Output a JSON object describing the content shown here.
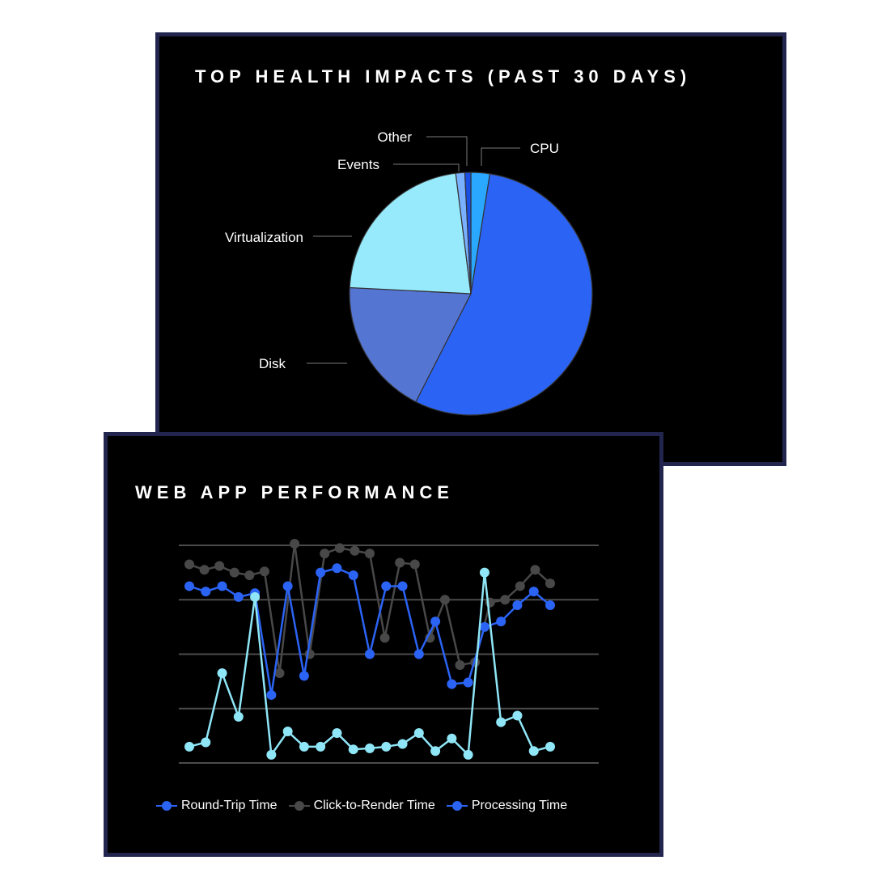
{
  "chart_data": [
    {
      "type": "pie",
      "title": "TOP HEALTH IMPACTS (PAST 30 DAYS)",
      "slices": [
        {
          "label": "CPU",
          "value": 2.5,
          "color": "#2aa7ff"
        },
        {
          "label": "",
          "value": 55,
          "color": "#2b63f4"
        },
        {
          "label": "Disk",
          "value": 18.3,
          "color": "#5575d3"
        },
        {
          "label": "Virtualization",
          "value": 22.2,
          "color": "#96eafc"
        },
        {
          "label": "Events",
          "value": 1.2,
          "color": "#79b0ff"
        },
        {
          "label": "Other",
          "value": 0.8,
          "color": "#1a4fe6"
        }
      ]
    },
    {
      "type": "line",
      "title": "WEB APP PERFORMANCE",
      "grid": true,
      "ylim": [
        0,
        4
      ],
      "legend": "bottom",
      "series": [
        {
          "name": "Round-Trip Time",
          "color": "#2b63f4",
          "points": [
            [
              0,
              3.25
            ],
            [
              1,
              3.15
            ],
            [
              2,
              3.25
            ],
            [
              3,
              3.05
            ],
            [
              4,
              3.12
            ],
            [
              5,
              1.25
            ],
            [
              6,
              3.25
            ],
            [
              7,
              1.6
            ],
            [
              8,
              3.5
            ],
            [
              9,
              3.58
            ],
            [
              10,
              3.45
            ],
            [
              11,
              2
            ],
            [
              12,
              3.25
            ],
            [
              13,
              3.25
            ],
            [
              14,
              2
            ],
            [
              15,
              2.6
            ],
            [
              16,
              1.45
            ],
            [
              17,
              1.48
            ],
            [
              18,
              2.5
            ],
            [
              19,
              2.6
            ],
            [
              20,
              2.9
            ],
            [
              21,
              3.15
            ],
            [
              22,
              2.9
            ]
          ]
        },
        {
          "name": "Click-to-Render Time",
          "color": "#484848",
          "points": [
            [
              0,
              3.65
            ],
            [
              1,
              3.55
            ],
            [
              2,
              3.62
            ],
            [
              3,
              3.5
            ],
            [
              4,
              3.45
            ],
            [
              5,
              3.52
            ],
            [
              6,
              1.65
            ],
            [
              7,
              4.03
            ],
            [
              8,
              2
            ],
            [
              9,
              3.85
            ],
            [
              10,
              3.95
            ],
            [
              11,
              3.9
            ],
            [
              12,
              3.85
            ],
            [
              13,
              2.3
            ],
            [
              14,
              3.68
            ],
            [
              15,
              3.65
            ],
            [
              16,
              2.3
            ],
            [
              17,
              3
            ],
            [
              18,
              1.8
            ],
            [
              19,
              1.85
            ],
            [
              20,
              2.95
            ],
            [
              21,
              3
            ],
            [
              22,
              3.25
            ],
            [
              23,
              3.55
            ],
            [
              24,
              3.3
            ]
          ]
        },
        {
          "name": "Processing Time",
          "color": "#8fe6f6",
          "points": [
            [
              0,
              0.3
            ],
            [
              1,
              0.38
            ],
            [
              2,
              1.65
            ],
            [
              3,
              0.85
            ],
            [
              4,
              3.05
            ],
            [
              5,
              0.15
            ],
            [
              6,
              0.58
            ],
            [
              7,
              0.3
            ],
            [
              8,
              0.3
            ],
            [
              9,
              0.55
            ],
            [
              10,
              0.25
            ],
            [
              11,
              0.27
            ],
            [
              12,
              0.3
            ],
            [
              13,
              0.35
            ],
            [
              14,
              0.55
            ],
            [
              15,
              0.22
            ],
            [
              16,
              0.45
            ],
            [
              17,
              0.15
            ],
            [
              18,
              3.5
            ],
            [
              19,
              0.75
            ],
            [
              20,
              0.87
            ],
            [
              21,
              0.22
            ],
            [
              22,
              0.3
            ]
          ]
        }
      ]
    }
  ]
}
